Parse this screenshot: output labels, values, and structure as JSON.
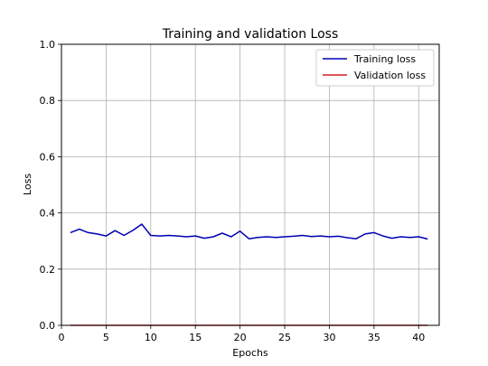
{
  "chart_data": {
    "type": "line",
    "title": "Training and validation Loss",
    "xlabel": "Epochs",
    "ylabel": "Loss",
    "xlim": [
      0,
      42.3
    ],
    "ylim": [
      0.0,
      1.0
    ],
    "xticks": [
      0,
      5,
      10,
      15,
      20,
      25,
      30,
      35,
      40
    ],
    "yticks": [
      0.0,
      0.2,
      0.4,
      0.6,
      0.8,
      1.0
    ],
    "xtick_labels": [
      "0",
      "5",
      "10",
      "15",
      "20",
      "25",
      "30",
      "35",
      "40"
    ],
    "ytick_labels": [
      "0.0",
      "0.2",
      "0.4",
      "0.6",
      "0.8",
      "1.0"
    ],
    "grid": true,
    "legend_position": "top-right",
    "x": [
      1,
      2,
      3,
      4,
      5,
      6,
      7,
      8,
      9,
      10,
      11,
      12,
      13,
      14,
      15,
      16,
      17,
      18,
      19,
      20,
      21,
      22,
      23,
      24,
      25,
      26,
      27,
      28,
      29,
      30,
      31,
      32,
      33,
      34,
      35,
      36,
      37,
      38,
      39,
      40,
      41
    ],
    "series": [
      {
        "name": "Training loss",
        "color": "#0000b4",
        "values": [
          0.33,
          0.342,
          0.33,
          0.325,
          0.318,
          0.337,
          0.32,
          0.338,
          0.36,
          0.32,
          0.318,
          0.32,
          0.318,
          0.315,
          0.318,
          0.31,
          0.315,
          0.328,
          0.315,
          0.335,
          0.308,
          0.313,
          0.315,
          0.313,
          0.315,
          0.317,
          0.32,
          0.316,
          0.318,
          0.315,
          0.317,
          0.312,
          0.308,
          0.325,
          0.33,
          0.318,
          0.31,
          0.315,
          0.313,
          0.315,
          0.307
        ]
      },
      {
        "name": "Validation loss",
        "color": "#d62020",
        "values": [
          0,
          0,
          0,
          0,
          0,
          0,
          0,
          0,
          0,
          0,
          0,
          0,
          0,
          0,
          0,
          0,
          0,
          0,
          0,
          0,
          0,
          0,
          0,
          0,
          0,
          0,
          0,
          0,
          0,
          0,
          0,
          0,
          0,
          0,
          0,
          0,
          0,
          0,
          0,
          0,
          0
        ]
      }
    ]
  }
}
